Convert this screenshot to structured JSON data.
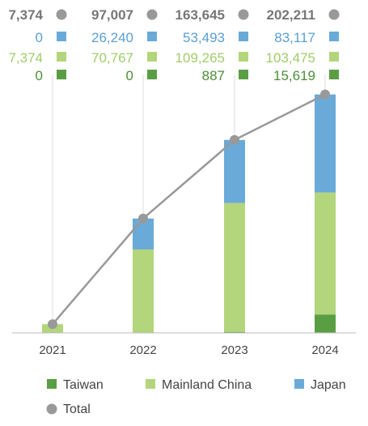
{
  "chart_data": {
    "type": "bar",
    "stacked": true,
    "categories": [
      "2021",
      "2022",
      "2023",
      "2024"
    ],
    "series": [
      {
        "name": "Taiwan",
        "color": "#5a9e44",
        "values": [
          0,
          0,
          887,
          15619
        ],
        "labels": [
          "0",
          "0",
          "887",
          "15,619"
        ]
      },
      {
        "name": "Mainland China",
        "color": "#b3d57b",
        "values": [
          7374,
          70767,
          109265,
          103475
        ],
        "labels": [
          "7,374",
          "70,767",
          "109,265",
          "103,475"
        ]
      },
      {
        "name": "Japan",
        "color": "#6aaad8",
        "values": [
          0,
          26240,
          53493,
          83117
        ],
        "labels": [
          "0",
          "26,240",
          "53,493",
          "83,117"
        ]
      }
    ],
    "total": {
      "name": "Total",
      "type": "line",
      "color": "#999999",
      "values": [
        7374,
        97007,
        163645,
        202211
      ],
      "labels": [
        "7,374",
        "97,007",
        "163,645",
        "202,211"
      ]
    },
    "ylim": [
      0,
      220000
    ],
    "grid": "vertical",
    "legend": "bottom"
  },
  "colors": {
    "total_text": "#777777",
    "japan_text": "#5aa0d6",
    "china_text": "#a2cc6a",
    "taiwan_text": "#4a8f35",
    "axis": "#bbbbbb",
    "grid": "#dddddd"
  }
}
